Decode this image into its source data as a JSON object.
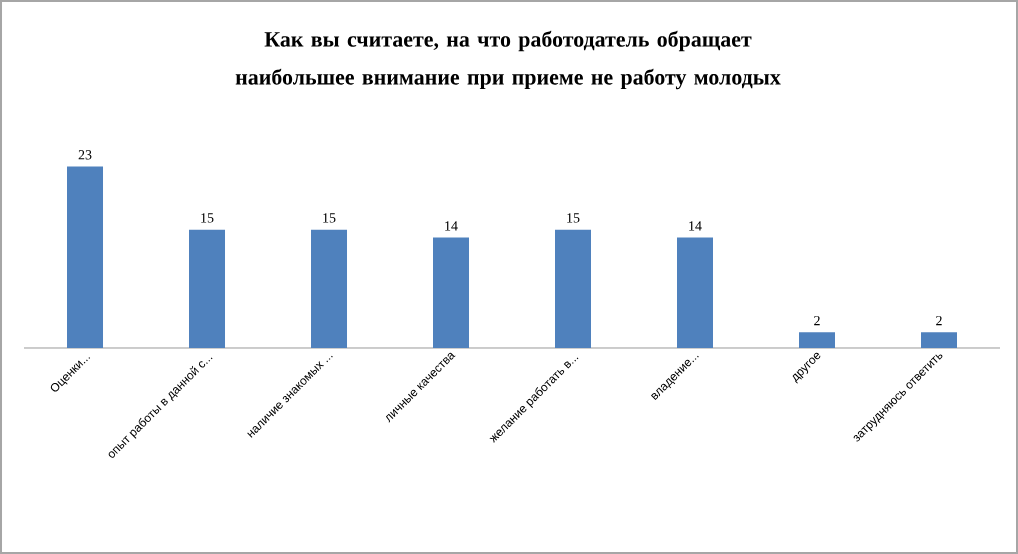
{
  "chart_data": {
    "type": "bar",
    "title": "Как вы считаете, на что работодатель обращает наибольшее внимание при приеме не работу молодых",
    "categories": [
      "Оценки...",
      "опыт работы в данной с...",
      "наличие знакомых ...",
      "личные качества",
      "желание работать в...",
      "владение...",
      "другое",
      "затрудняюсь ответить"
    ],
    "values": [
      23,
      15,
      15,
      14,
      15,
      14,
      2,
      2
    ],
    "color": "#4f81bd",
    "data_labels": true
  }
}
